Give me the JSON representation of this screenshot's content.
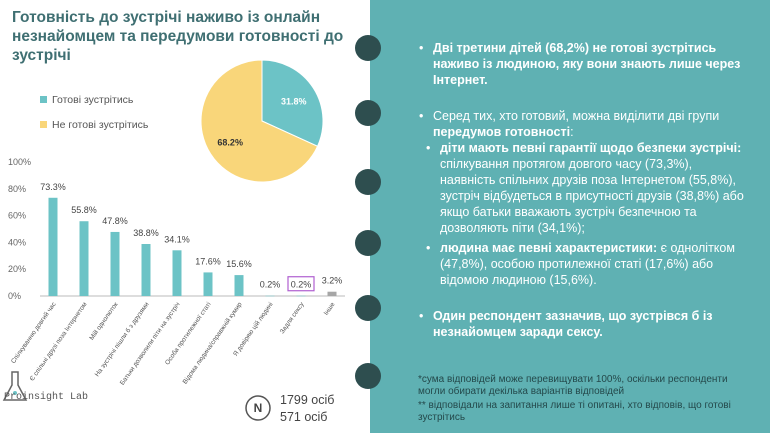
{
  "header": {
    "title": "Готовність до зустрічі наживо із онлайн незнайомцем та передумови готовності до зустрічі"
  },
  "chart_data": [
    {
      "type": "pie",
      "categories": [
        "Готові зустрітись",
        "Не готові зустрітись"
      ],
      "values": [
        31.8,
        68.2
      ],
      "value_labels": [
        "31.8%",
        "68.2%"
      ],
      "colors": [
        "#6cc3c6",
        "#f9d67a"
      ],
      "legend": "top-left"
    },
    {
      "type": "bar",
      "categories": [
        "Спілкуванню довгий час",
        "Є спільні друзі поза Інтернетом",
        "Мій однолюток",
        "На зустрічі пішли б з друзями",
        "Батьки дозволили піти на зустріч",
        "Особа протилежної статі",
        "Відома людина/справжній кумир",
        "Я довіряю цій людині",
        "Задля сексу",
        "Інше"
      ],
      "values": [
        73.3,
        55.8,
        47.8,
        38.8,
        34.1,
        17.6,
        15.6,
        0.2,
        0.2,
        3.2
      ],
      "value_labels": [
        "73.3%",
        "55.8%",
        "47.8%",
        "38.8%",
        "34.1%",
        "17.6%",
        "15.6%",
        "0.2%",
        "0.2%",
        "3.2%"
      ],
      "colors": [
        "#6cc3c6",
        "#6cc3c6",
        "#6cc3c6",
        "#6cc3c6",
        "#6cc3c6",
        "#6cc3c6",
        "#6cc3c6",
        "#6cc3c6",
        "#6cc3c6",
        "#a6a6a6"
      ],
      "highlighted_categories": [
        "Задля сексу"
      ],
      "ylim": [
        0,
        100
      ],
      "yticks": [
        {
          "value": 0,
          "label": "0%"
        },
        {
          "value": 20,
          "label": "20%"
        },
        {
          "value": 40,
          "label": "40%"
        },
        {
          "value": 60,
          "label": "60%"
        },
        {
          "value": 80,
          "label": "80%"
        },
        {
          "value": 100,
          "label": "100%"
        }
      ],
      "grid": false
    }
  ],
  "sample": {
    "symbol": "N",
    "lines": [
      "1799 осіб",
      "571 осіб"
    ]
  },
  "logo": "Proinsight Lab",
  "panel": {
    "b1": "Дві третини дітей (68,2%) не готові зустрітись наживо із людиною, яку вони знають лише через Інтернет.",
    "p2": {
      "text": "Серед тих, хто готовий, можна виділити дві групи ",
      "bold": "передумов готовності",
      "end": ":"
    },
    "s1": {
      "bold": "діти мають певні гарантії щодо безпеки зустрічі:",
      "text": " спілкування протягом довгого часу (73,3%), наявність спільних друзів поза Інтернетом (55,8%), зустріч відбудеться в присутності друзів (38,8%) або якщо батьки вважають зустріч безпечною та дозволяють піти (34,1%);"
    },
    "s2": {
      "bold": "людина має певні характеристики:",
      "text": " є однолітком (47,8%), особою протилежної статі (17,6%) або відомою людиною (15,6%)."
    },
    "b3": "Один респондент зазначив, що зустрівся б із незнайомцем заради сексу.",
    "notes": [
      "*сума відповідей може перевищувати 100%, оскільки респонденти могли обирати декілька варіантів відповідей",
      "** відповідали на запитання лише ті опитані, хто відповів, що готові зустрітись"
    ]
  }
}
